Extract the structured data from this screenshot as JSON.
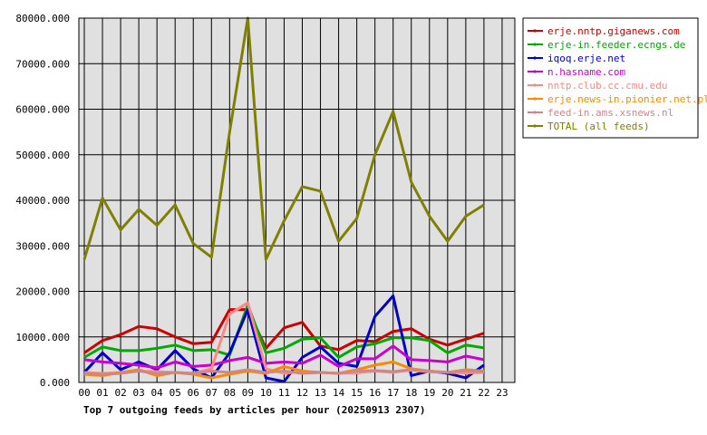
{
  "chart_data": {
    "type": "line",
    "title": "Top 7 outgoing feeds by articles per hour (20250913 2307)",
    "xlabel": "",
    "ylabel": "",
    "x_ticks": [
      "00",
      "01",
      "02",
      "03",
      "04",
      "05",
      "06",
      "07",
      "08",
      "09",
      "10",
      "11",
      "12",
      "13",
      "14",
      "15",
      "16",
      "17",
      "18",
      "19",
      "20",
      "21",
      "22",
      "23"
    ],
    "y_ticks": [
      "0.000",
      "10000.000",
      "20000.000",
      "30000.000",
      "40000.000",
      "50000.000",
      "60000.000",
      "70000.000",
      "80000.000"
    ],
    "ylim": [
      0,
      80000
    ],
    "grid": true,
    "legend_position": "right",
    "plot_background": "#e0e0e0",
    "series": [
      {
        "name": "erje.nntp.giganews.com",
        "color": "#cc0000",
        "values": [
          6500,
          9200,
          10500,
          12300,
          11800,
          10000,
          8500,
          8800,
          16000,
          16000,
          7500,
          12000,
          13200,
          8000,
          7200,
          9200,
          9000,
          11200,
          11800,
          9500,
          8200,
          9500,
          10800
        ]
      },
      {
        "name": "erje-in.feeder.ecngs.de",
        "color": "#00aa00",
        "values": [
          5500,
          7800,
          7000,
          7000,
          7500,
          8200,
          7000,
          7200,
          6000,
          17000,
          6500,
          7500,
          9500,
          9800,
          5500,
          7800,
          8500,
          9800,
          9800,
          9200,
          6500,
          8200,
          7600
        ]
      },
      {
        "name": "iqoq.erje.net",
        "color": "#0000cc",
        "values": [
          2200,
          6500,
          2800,
          4500,
          2800,
          7000,
          3000,
          1000,
          6500,
          16000,
          1000,
          200,
          5500,
          7800,
          4200,
          3500,
          14500,
          19000,
          1500,
          2500,
          2000,
          1000,
          3800
        ]
      },
      {
        "name": "n.hasname.com",
        "color": "#cc00cc",
        "values": [
          5000,
          4500,
          4200,
          3800,
          3200,
          4500,
          3500,
          3800,
          4800,
          5500,
          4200,
          4500,
          4200,
          6000,
          3500,
          5200,
          5200,
          8000,
          5000,
          4800,
          4500,
          5800,
          5000
        ]
      },
      {
        "name": "nntp.club.cc.cmu.edu",
        "color": "#ff8888",
        "values": [
          2200,
          2000,
          2200,
          2500,
          2400,
          2200,
          2000,
          3000,
          15000,
          17500,
          3000,
          2000,
          2400,
          2200,
          2000,
          2100,
          2500,
          2200,
          2700,
          2300,
          2200,
          2100,
          2200
        ]
      },
      {
        "name": "erje.news-in.pionier.net.pl",
        "color": "#ff8800",
        "values": [
          1800,
          1500,
          2200,
          2800,
          1500,
          2200,
          1800,
          1000,
          1800,
          2500,
          2000,
          3500,
          2500,
          2200,
          2000,
          2800,
          3800,
          4500,
          3000,
          2500,
          2200,
          2800,
          2500
        ]
      },
      {
        "name": "feed-in.ams.xsnews.nl",
        "color": "#cc8888",
        "values": [
          2000,
          1800,
          2000,
          2500,
          2000,
          2200,
          2000,
          2500,
          2200,
          2800,
          2200,
          2500,
          2000,
          2200,
          2000,
          2500,
          2600,
          2400,
          2800,
          2500,
          2200,
          2600,
          2400
        ]
      },
      {
        "name": "TOTAL (all feeds)",
        "color": "#808000",
        "values": [
          27000,
          40500,
          33500,
          38000,
          34500,
          39000,
          30500,
          27500,
          55000,
          80000,
          27000,
          35500,
          43000,
          42000,
          31000,
          36000,
          50000,
          59500,
          44000,
          36500,
          31000,
          36500,
          39000
        ]
      }
    ]
  }
}
